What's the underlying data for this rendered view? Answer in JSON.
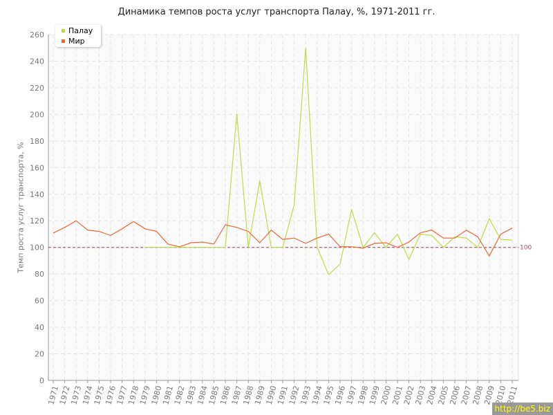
{
  "chart_data": {
    "type": "line",
    "title": "Динамика темпов роста услуг транспорта Палау, %, 1971-2011 гг.",
    "xlabel": "",
    "ylabel": "Темп роста услуг транспорта, %",
    "ylim": [
      0,
      260
    ],
    "yticks": [
      0,
      20,
      40,
      60,
      80,
      100,
      120,
      140,
      160,
      180,
      200,
      220,
      240,
      260
    ],
    "x": [
      1971,
      1972,
      1973,
      1974,
      1975,
      1976,
      1977,
      1978,
      1979,
      1980,
      1981,
      1982,
      1983,
      1984,
      1985,
      1986,
      1987,
      1988,
      1989,
      1990,
      1991,
      1992,
      1993,
      1994,
      1995,
      1996,
      1997,
      1998,
      1999,
      2000,
      2001,
      2002,
      2003,
      2004,
      2005,
      2006,
      2007,
      2008,
      2009,
      2010,
      2011
    ],
    "grid": true,
    "legend_position": "top-left",
    "reference_line": {
      "value": 100,
      "label": "100",
      "color": "#b05060"
    },
    "series": [
      {
        "name": "Палау",
        "color": "#bbdd44",
        "values": [
          null,
          null,
          null,
          null,
          null,
          null,
          null,
          null,
          100,
          100,
          100,
          100,
          100,
          100,
          100,
          100,
          200.5,
          100,
          150,
          100,
          100,
          132,
          250,
          100,
          79.5,
          87.5,
          128.5,
          100,
          111,
          100,
          110,
          91,
          110,
          109,
          100,
          108,
          107,
          100,
          121.5,
          106,
          105.5
        ]
      },
      {
        "name": "Мир",
        "color": "#ee6633",
        "values": [
          110.8,
          115,
          120,
          113,
          112,
          109,
          114,
          119.5,
          114,
          112,
          102.5,
          100.4,
          103.5,
          104,
          102.5,
          117,
          115,
          112,
          103.5,
          113,
          106,
          107,
          103,
          107,
          110,
          100.5,
          100.5,
          99.5,
          103,
          103.5,
          100,
          104,
          111,
          113,
          107,
          107,
          113,
          108,
          93.5,
          110,
          114.5
        ]
      }
    ]
  },
  "watermark": "http://be5.biz"
}
